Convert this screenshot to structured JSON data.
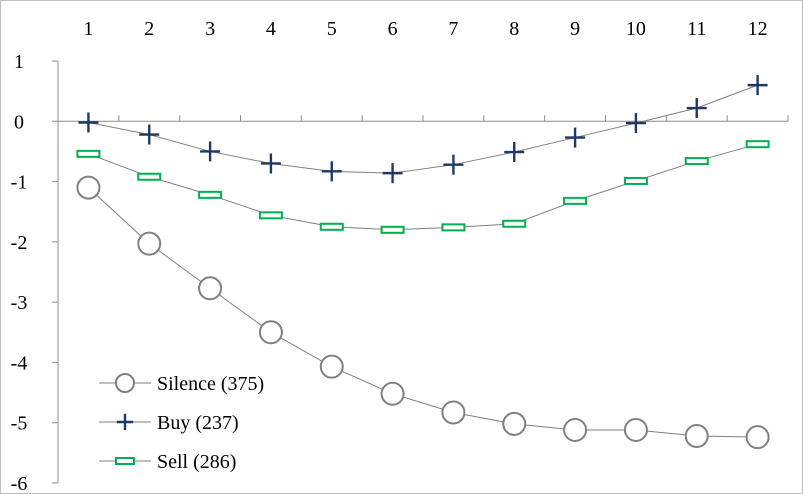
{
  "chart_data": {
    "type": "line",
    "categories": [
      "1",
      "2",
      "3",
      "4",
      "5",
      "6",
      "7",
      "8",
      "9",
      "10",
      "11",
      "12"
    ],
    "ylim": [
      -6,
      1
    ],
    "yticks": [
      "1",
      "0",
      "-1",
      "-2",
      "-3",
      "-4",
      "-5",
      "-6"
    ],
    "grid": false,
    "legend_position": "bottom-left",
    "series": [
      {
        "name": "Silence (375)",
        "marker": "circle",
        "color": "#808080",
        "values": [
          -1.1,
          -2.03,
          -2.77,
          -3.5,
          -4.07,
          -4.52,
          -4.83,
          -5.02,
          -5.12,
          -5.12,
          -5.22,
          -5.24
        ]
      },
      {
        "name": "Buy (237)",
        "marker": "plus",
        "color": "#1f3864",
        "values": [
          -0.02,
          -0.22,
          -0.5,
          -0.7,
          -0.83,
          -0.86,
          -0.72,
          -0.51,
          -0.27,
          -0.03,
          0.22,
          0.6
        ]
      },
      {
        "name": "Sell (286)",
        "marker": "dash",
        "color": "#00b050",
        "values": [
          -0.54,
          -0.92,
          -1.22,
          -1.56,
          -1.75,
          -1.8,
          -1.76,
          -1.7,
          -1.32,
          -0.99,
          -0.66,
          -0.38
        ]
      }
    ]
  }
}
